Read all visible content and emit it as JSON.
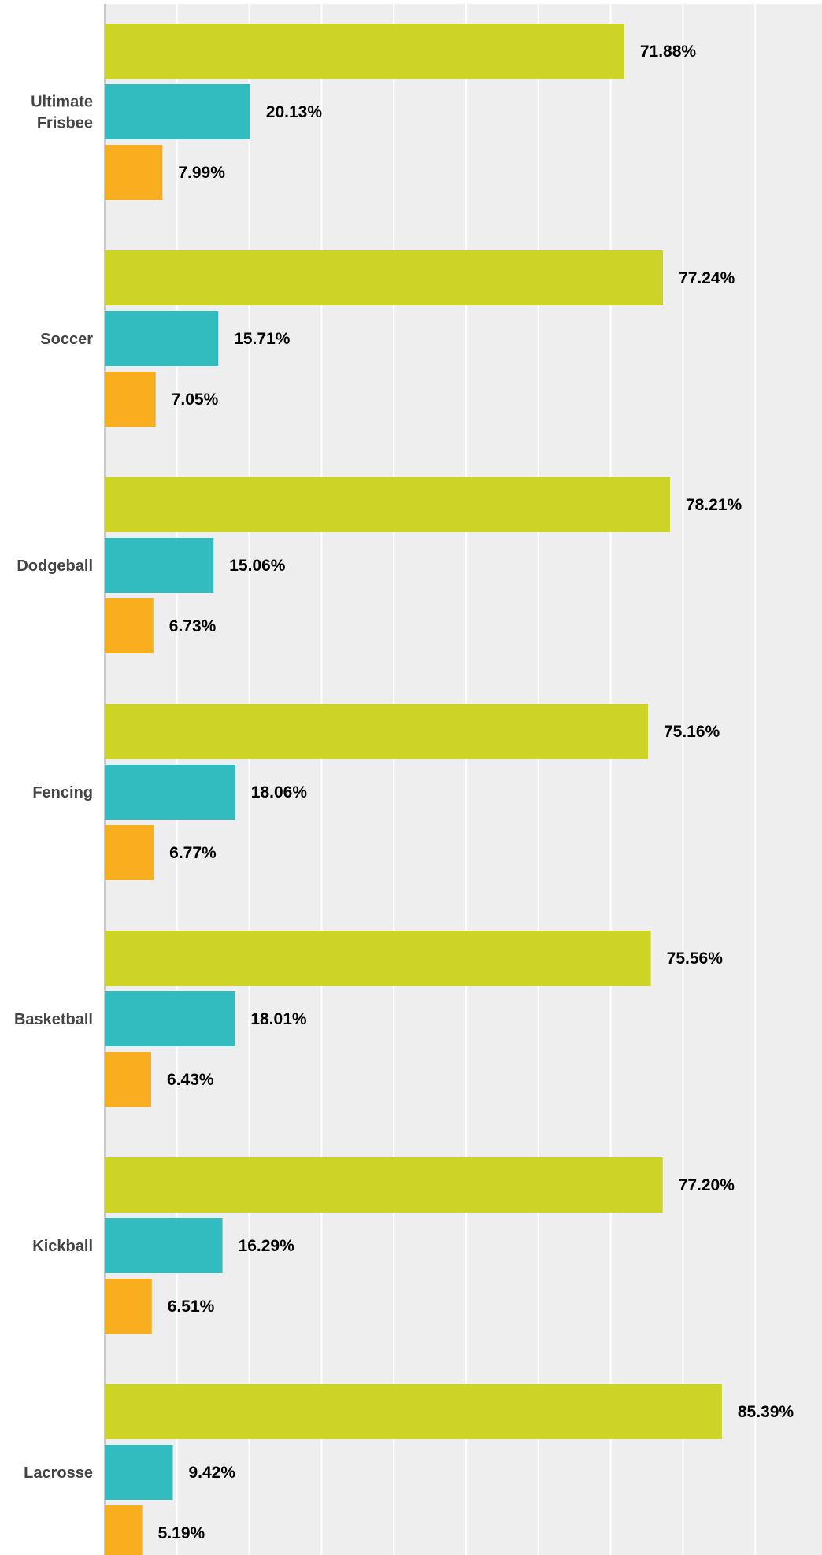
{
  "chart_data": {
    "type": "bar",
    "orientation": "horizontal",
    "categories": [
      [
        "Ultimate",
        "Frisbee"
      ],
      [
        "Soccer"
      ],
      [
        "Dodgeball"
      ],
      [
        "Fencing"
      ],
      [
        "Basketball"
      ],
      [
        "Kickball"
      ],
      [
        "Lacrosse"
      ]
    ],
    "series": [
      {
        "values": [
          71.88,
          77.24,
          78.21,
          75.16,
          75.56,
          77.2,
          85.39
        ],
        "labels": [
          "71.88%",
          "77.24%",
          "78.21%",
          "75.16%",
          "75.56%",
          "77.20%",
          "85.39%"
        ],
        "color": "#cdd425"
      },
      {
        "values": [
          20.13,
          15.71,
          15.06,
          18.06,
          18.01,
          16.29,
          9.42
        ],
        "labels": [
          "20.13%",
          "15.71%",
          "15.06%",
          "18.06%",
          "18.01%",
          "16.29%",
          "9.42%"
        ],
        "color": "#33bcbf"
      },
      {
        "values": [
          7.99,
          7.05,
          6.73,
          6.77,
          6.43,
          6.51,
          5.19
        ],
        "labels": [
          "7.99%",
          "7.05%",
          "6.73%",
          "6.77%",
          "6.43%",
          "6.51%",
          "5.19%"
        ],
        "color": "#f8ae1f"
      }
    ],
    "xlim": [
      0,
      100
    ],
    "grid": true,
    "title": "",
    "xlabel": "",
    "ylabel": ""
  },
  "colors": {
    "plot_background": "#eeeeee",
    "gridline": "#ffffff",
    "axis_line": "#c8c8c8",
    "category_text": "#444444",
    "value_text": "#000000"
  }
}
